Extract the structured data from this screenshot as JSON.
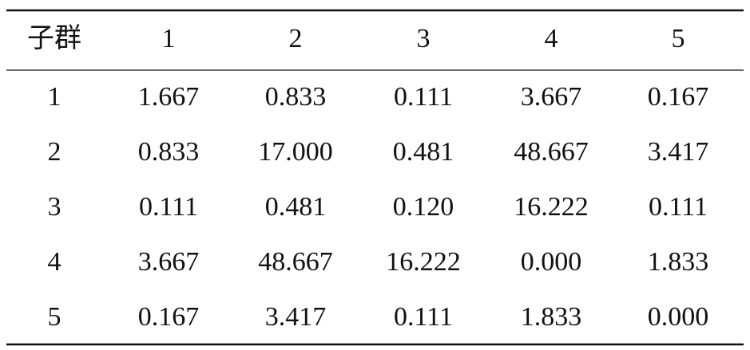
{
  "table": {
    "header": [
      "子群",
      "1",
      "2",
      "3",
      "4",
      "5"
    ],
    "rows": [
      [
        "1",
        "1.667",
        "0.833",
        "0.111",
        "3.667",
        "0.167"
      ],
      [
        "2",
        "0.833",
        "17.000",
        "0.481",
        "48.667",
        "3.417"
      ],
      [
        "3",
        "0.111",
        "0.481",
        "0.120",
        "16.222",
        "0.111"
      ],
      [
        "4",
        "3.667",
        "48.667",
        "16.222",
        "0.000",
        "1.833"
      ],
      [
        "5",
        "0.167",
        "3.417",
        "0.111",
        "1.833",
        "0.000"
      ]
    ]
  }
}
